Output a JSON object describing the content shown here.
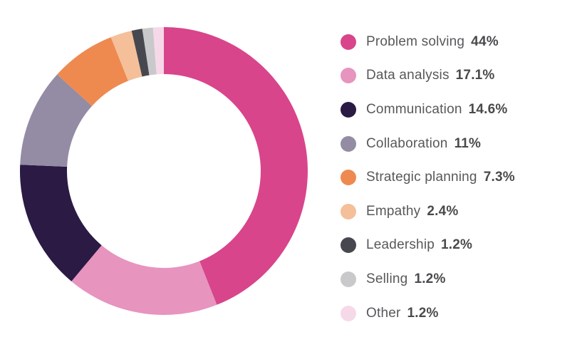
{
  "chart_data": {
    "type": "pie",
    "subtype": "donut",
    "title": "",
    "legend_position": "right",
    "start_angle": "top",
    "direction": "clockwise",
    "background_color": "#ffffff",
    "geometry": {
      "center_x": 230,
      "center_y": 240,
      "outer_radius": 202,
      "inner_radius": 136
    },
    "series": [
      {
        "label": "Problem solving",
        "value": 44,
        "display": "44%",
        "color": "#D8458B"
      },
      {
        "label": "Data analysis",
        "value": 17.1,
        "display": "17.1%",
        "color": "#E794BF"
      },
      {
        "label": "Communication",
        "value": 14.6,
        "display": "14.6%",
        "color": "#2A1A44"
      },
      {
        "label": "Collaboration",
        "value": 11,
        "display": "11%",
        "color": "#948BA4"
      },
      {
        "label": "Strategic planning",
        "value": 7.3,
        "display": "7.3%",
        "color": "#EE8A4F"
      },
      {
        "label": "Empathy",
        "value": 2.4,
        "display": "2.4%",
        "color": "#F4BF99"
      },
      {
        "label": "Leadership",
        "value": 1.2,
        "display": "1.2%",
        "color": "#47474F"
      },
      {
        "label": "Selling",
        "value": 1.2,
        "display": "1.2%",
        "color": "#C9C9CC"
      },
      {
        "label": "Other",
        "value": 1.2,
        "display": "1.2%",
        "color": "#F6D9E8"
      }
    ]
  },
  "legend": {
    "swatch_shape": "circle"
  }
}
